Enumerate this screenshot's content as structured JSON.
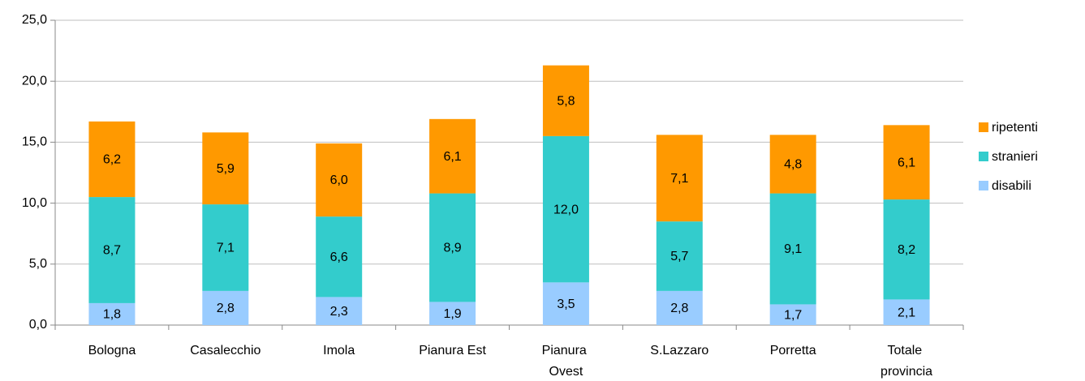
{
  "chart_data": {
    "type": "stacked_bar",
    "categories": [
      "Bologna",
      "Casalecchio",
      "Imola",
      "Pianura Est",
      "Pianura Ovest",
      "S.Lazzaro",
      "Porretta",
      "Totale provincia"
    ],
    "series": [
      {
        "name": "disabili",
        "color": "#99ccff",
        "values": [
          1.8,
          2.8,
          2.3,
          1.9,
          3.5,
          2.8,
          1.7,
          2.1
        ],
        "value_labels": [
          "1,8",
          "2,8",
          "2,3",
          "1,9",
          "3,5",
          "2,8",
          "1,7",
          "2,1"
        ]
      },
      {
        "name": "stranieri",
        "color": "#33cccc",
        "values": [
          8.7,
          7.1,
          6.6,
          8.9,
          12.0,
          5.7,
          9.1,
          8.2
        ],
        "value_labels": [
          "8,7",
          "7,1",
          "6,6",
          "8,9",
          "12,0",
          "5,7",
          "9,1",
          "8,2"
        ]
      },
      {
        "name": "ripetenti",
        "color": "#ff9900",
        "values": [
          6.2,
          5.9,
          6.0,
          6.1,
          5.8,
          7.1,
          4.8,
          6.1
        ],
        "value_labels": [
          "6,2",
          "5,9",
          "6,0",
          "6,1",
          "5,8",
          "7,1",
          "4,8",
          "6,1"
        ]
      }
    ],
    "ylim": [
      0,
      25
    ],
    "yticks": [
      {
        "value": 0,
        "label": "0,0"
      },
      {
        "value": 5,
        "label": "5,0"
      },
      {
        "value": 10,
        "label": "10,0"
      },
      {
        "value": 15,
        "label": "15,0"
      },
      {
        "value": 20,
        "label": "20,0"
      },
      {
        "value": 25,
        "label": "25,0"
      }
    ],
    "grid": true,
    "legend": "right"
  }
}
